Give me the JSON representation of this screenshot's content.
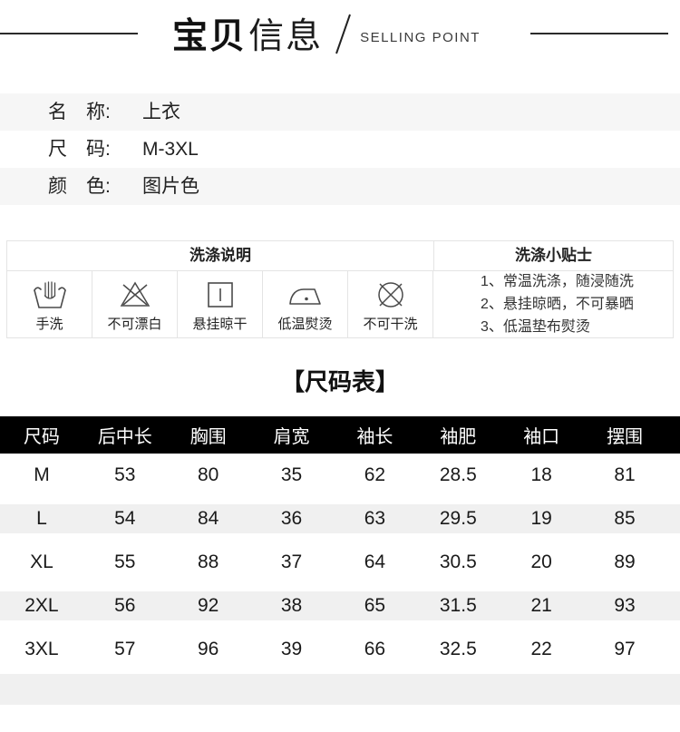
{
  "header": {
    "title_zh_bold": "宝贝",
    "title_zh_light": "信息",
    "subtitle_en": "SELLING POINT"
  },
  "product_info": {
    "rows": [
      {
        "label": "名　称:",
        "value": "上衣"
      },
      {
        "label": "尺　码:",
        "value": "M-3XL"
      },
      {
        "label": "颜　色:",
        "value": "图片色"
      }
    ]
  },
  "care": {
    "instructions_title": "洗涤说明",
    "tips_title": "洗涤小贴士",
    "symbols": [
      {
        "icon": "hand-wash-icon",
        "label": "手洗"
      },
      {
        "icon": "no-bleach-icon",
        "label": "不可漂白"
      },
      {
        "icon": "hang-dry-icon",
        "label": "悬挂晾干"
      },
      {
        "icon": "low-iron-icon",
        "label": "低温熨烫"
      },
      {
        "icon": "no-dry-clean-icon",
        "label": "不可干洗"
      }
    ],
    "tips": [
      "1、常温洗涤，随浸随洗",
      "2、悬挂晾晒，不可暴晒",
      "3、低温垫布熨烫"
    ]
  },
  "size_chart": {
    "title": "【尺码表】",
    "columns": [
      "尺码",
      "后中长",
      "胸围",
      "肩宽",
      "袖长",
      "袖肥",
      "袖口",
      "摆围"
    ],
    "rows": [
      [
        "M",
        "53",
        "80",
        "35",
        "62",
        "28.5",
        "18",
        "81"
      ],
      [
        "L",
        "54",
        "84",
        "36",
        "63",
        "29.5",
        "19",
        "85"
      ],
      [
        "XL",
        "55",
        "88",
        "37",
        "64",
        "30.5",
        "20",
        "89"
      ],
      [
        "2XL",
        "56",
        "92",
        "38",
        "65",
        "31.5",
        "21",
        "93"
      ],
      [
        "3XL",
        "57",
        "96",
        "39",
        "66",
        "32.5",
        "22",
        "97"
      ]
    ]
  },
  "colors": {
    "accent_black": "#000000",
    "row_alt_bg": "#f6f6f6",
    "band_gray": "#f0f0f0",
    "border_gray": "#e4e4e4",
    "icon_stroke": "#4a4a4a"
  }
}
